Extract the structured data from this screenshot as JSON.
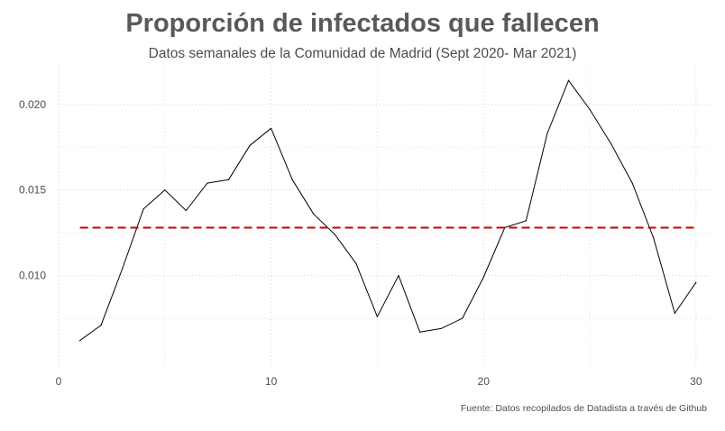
{
  "chart_data": {
    "type": "line",
    "title": "Proporción de infectados que fallecen",
    "subtitle": "Datos semanales de la Comunidad de Madrid (Sept 2020- Mar 2021)",
    "caption": "Fuente: Datos recopilados de Datadista a través de Github",
    "xlabel": "",
    "ylabel": "",
    "xlim": [
      0,
      30.6
    ],
    "ylim": [
      0.0045,
      0.0222
    ],
    "x_ticks": [
      0,
      10,
      20,
      30
    ],
    "x_tick_labels": [
      "0",
      "10",
      "20",
      "30"
    ],
    "y_ticks": [
      0.01,
      0.015,
      0.02
    ],
    "y_tick_labels": [
      "0.010",
      "0.015",
      "0.020"
    ],
    "grid": true,
    "legend": "none",
    "series": [
      {
        "color": "#000000",
        "x": [
          1,
          2,
          3,
          4,
          5,
          6,
          7,
          8,
          9,
          10,
          11,
          12,
          13,
          14,
          15,
          16,
          17,
          18,
          19,
          20,
          21,
          22,
          23,
          24,
          25,
          26,
          27,
          28,
          29,
          30
        ],
        "y": [
          0.0062,
          0.0071,
          0.0104,
          0.0139,
          0.015,
          0.0138,
          0.0154,
          0.0156,
          0.0176,
          0.0186,
          0.0156,
          0.0136,
          0.0124,
          0.0107,
          0.0076,
          0.01,
          0.0067,
          0.0069,
          0.0075,
          0.0099,
          0.0128,
          0.0132,
          0.0183,
          0.0214,
          0.0197,
          0.0177,
          0.0154,
          0.0122,
          0.0078,
          0.0096
        ]
      }
    ],
    "reference_line": {
      "y": 0.0128,
      "x_from": 1,
      "x_to": 30,
      "color": "#cc0000",
      "style": "dashed"
    }
  }
}
